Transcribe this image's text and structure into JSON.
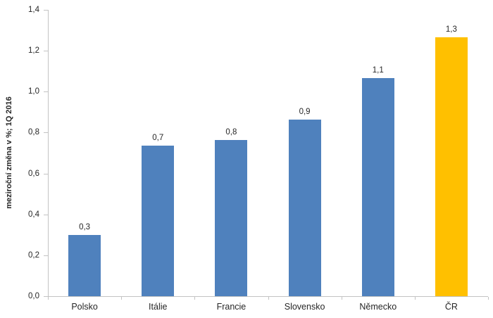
{
  "chart_data": {
    "type": "bar",
    "title": "",
    "xlabel": "",
    "ylabel": "meziroční změna v %; 1Q 2016",
    "categories": [
      "Polsko",
      "Itálie",
      "Francie",
      "Slovensko",
      "Německo",
      "ČR"
    ],
    "values": [
      0.3,
      0.735,
      0.765,
      0.865,
      1.065,
      1.265
    ],
    "data_labels": [
      "0,3",
      "0,7",
      "0,8",
      "0,9",
      "1,1",
      "1,3"
    ],
    "bar_colors": [
      "#4f81bd",
      "#4f81bd",
      "#4f81bd",
      "#4f81bd",
      "#4f81bd",
      "#ffc000"
    ],
    "ylim": [
      0,
      1.4
    ],
    "ytick_step": 0.2,
    "ytick_labels": [
      "0,0",
      "0,2",
      "0,4",
      "0,6",
      "0,8",
      "1,0",
      "1,2",
      "1,4"
    ],
    "grid": false,
    "legend": false
  },
  "colors": {
    "bar_default": "#4f81bd",
    "bar_highlight": "#ffc000",
    "axis": "#c3c3c3",
    "text": "#262626"
  }
}
